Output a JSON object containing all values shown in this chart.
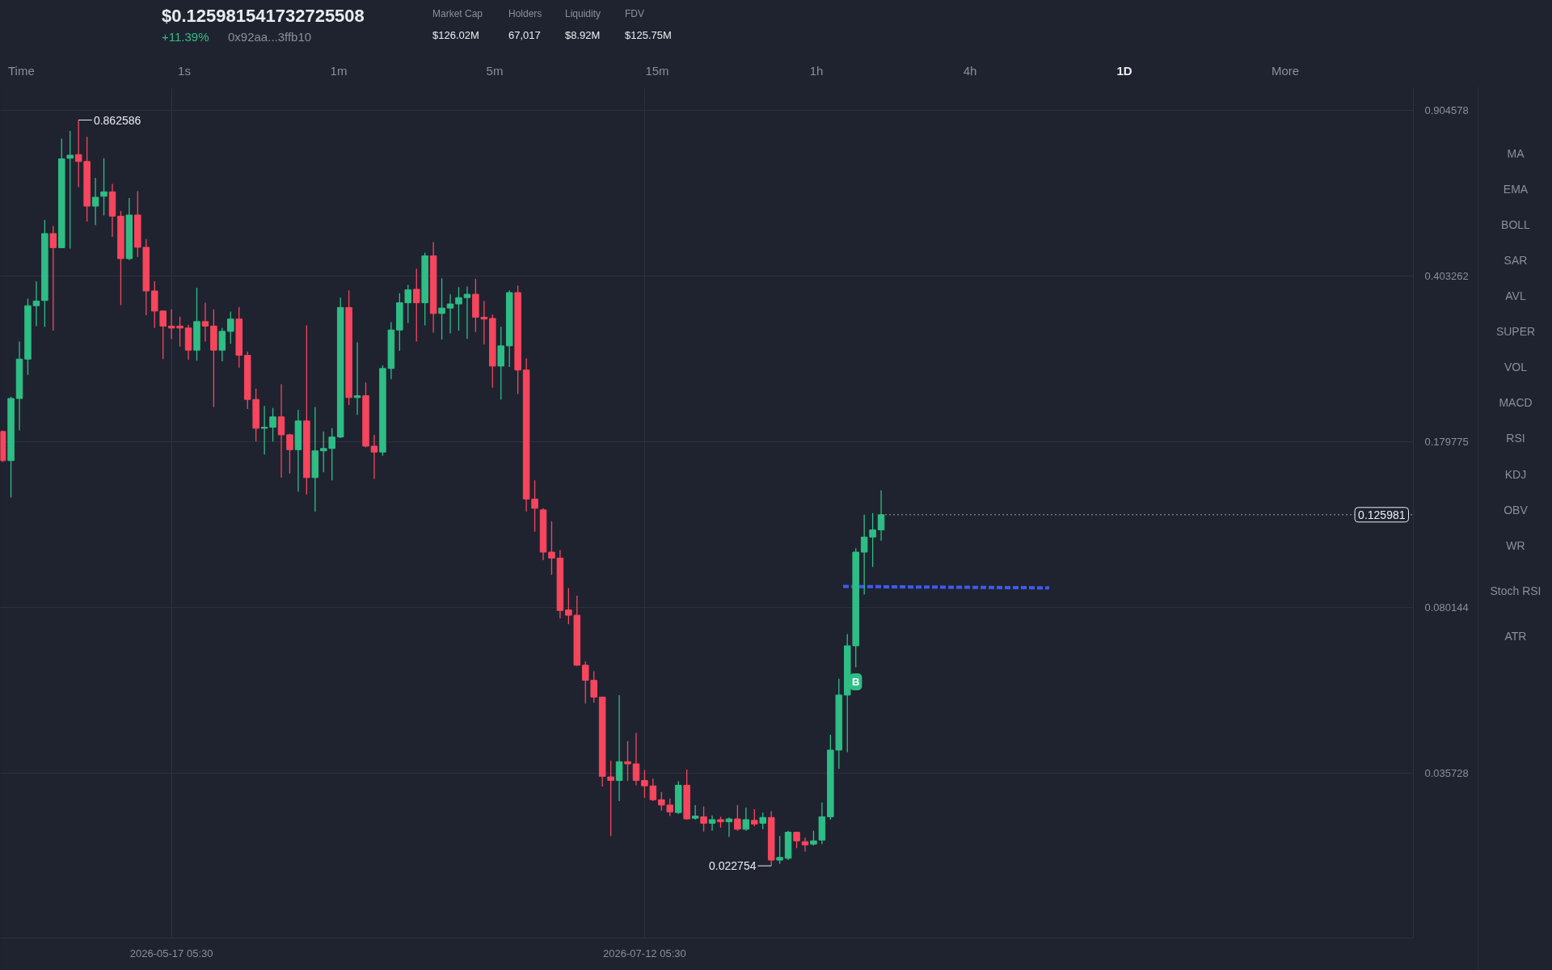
{
  "chart_data": {
    "type": "candlestick",
    "log": true,
    "grid": true,
    "xlim": [
      "2026-04-26T23:30",
      "2026-10-11T05:30"
    ],
    "xticks": [
      {
        "value": "2026-05-17T05:30",
        "label": "2026-05-17 05:30"
      },
      {
        "value": "2026-07-12T05:30",
        "label": "2026-07-12 05:30"
      }
    ],
    "ylim": [
      0.016,
      1.01
    ],
    "yticks": [
      0.035728,
      0.080144,
      0.179775,
      0.403262,
      0.904578
    ],
    "x": [
      "2026-04-27T05:30",
      "2026-04-28T05:30",
      "2026-04-29T05:30",
      "2026-04-30T05:30",
      "2026-05-01T05:30",
      "2026-05-02T05:30",
      "2026-05-03T05:30",
      "2026-05-04T05:30",
      "2026-05-05T05:30",
      "2026-05-06T05:30",
      "2026-05-07T05:30",
      "2026-05-08T05:30",
      "2026-05-09T05:30",
      "2026-05-10T05:30",
      "2026-05-11T05:30",
      "2026-05-12T05:30",
      "2026-05-13T05:30",
      "2026-05-14T05:30",
      "2026-05-15T05:30",
      "2026-05-16T05:30",
      "2026-05-17T05:30",
      "2026-05-18T05:30",
      "2026-05-19T05:30",
      "2026-05-20T05:30",
      "2026-05-21T05:30",
      "2026-05-22T05:30",
      "2026-05-23T05:30",
      "2026-05-24T05:30",
      "2026-05-25T05:30",
      "2026-05-26T05:30",
      "2026-05-27T05:30",
      "2026-05-28T05:30",
      "2026-05-29T05:30",
      "2026-05-30T05:30",
      "2026-05-31T05:30",
      "2026-06-01T05:30",
      "2026-06-02T05:30",
      "2026-06-03T05:30",
      "2026-06-04T05:30",
      "2026-06-05T05:30",
      "2026-06-06T05:30",
      "2026-06-07T05:30",
      "2026-06-08T05:30",
      "2026-06-09T05:30",
      "2026-06-10T05:30",
      "2026-06-11T05:30",
      "2026-06-12T05:30",
      "2026-06-13T05:30",
      "2026-06-14T05:30",
      "2026-06-15T05:30",
      "2026-06-16T05:30",
      "2026-06-17T05:30",
      "2026-06-18T05:30",
      "2026-06-19T05:30",
      "2026-06-20T05:30",
      "2026-06-21T05:30",
      "2026-06-22T05:30",
      "2026-06-23T05:30",
      "2026-06-24T05:30",
      "2026-06-25T05:30",
      "2026-06-26T05:30",
      "2026-06-27T05:30",
      "2026-06-28T05:30",
      "2026-06-29T05:30",
      "2026-06-30T05:30",
      "2026-07-01T05:30",
      "2026-07-02T05:30",
      "2026-07-03T05:30",
      "2026-07-04T05:30",
      "2026-07-05T05:30",
      "2026-07-06T05:30",
      "2026-07-07T05:30",
      "2026-07-08T05:30",
      "2026-07-09T05:30",
      "2026-07-10T05:30",
      "2026-07-11T05:30",
      "2026-07-12T05:30",
      "2026-07-13T05:30",
      "2026-07-14T05:30",
      "2026-07-15T05:30",
      "2026-07-16T05:30",
      "2026-07-17T05:30",
      "2026-07-18T05:30",
      "2026-07-19T05:30",
      "2026-07-20T05:30",
      "2026-07-21T05:30",
      "2026-07-22T05:30",
      "2026-07-23T05:30",
      "2026-07-24T05:30",
      "2026-07-25T05:30",
      "2026-07-26T05:30",
      "2026-07-27T05:30",
      "2026-07-28T05:30",
      "2026-07-29T05:30",
      "2026-07-30T05:30",
      "2026-07-31T05:30",
      "2026-08-01T05:30",
      "2026-08-02T05:30",
      "2026-08-03T05:30",
      "2026-08-04T05:30",
      "2026-08-05T05:30",
      "2026-08-06T05:30",
      "2026-08-07T05:30",
      "2026-08-08T05:30",
      "2026-08-09T05:30"
    ],
    "ohlc": [
      [
        0.189,
        0.19,
        0.163,
        0.164
      ],
      [
        0.164,
        0.224,
        0.137,
        0.222
      ],
      [
        0.222,
        0.293,
        0.19,
        0.269
      ],
      [
        0.269,
        0.361,
        0.249,
        0.349
      ],
      [
        0.349,
        0.393,
        0.316,
        0.357
      ],
      [
        0.358,
        0.53,
        0.315,
        0.496
      ],
      [
        0.496,
        0.515,
        0.309,
        0.463
      ],
      [
        0.463,
        0.788,
        0.462,
        0.714
      ],
      [
        0.716,
        0.818,
        0.461,
        0.727
      ],
      [
        0.729,
        0.862586,
        0.622,
        0.705
      ],
      [
        0.705,
        0.795,
        0.526,
        0.567
      ],
      [
        0.567,
        0.651,
        0.517,
        0.592
      ],
      [
        0.595,
        0.716,
        0.542,
        0.608
      ],
      [
        0.608,
        0.632,
        0.488,
        0.54
      ],
      [
        0.54,
        0.554,
        0.35,
        0.439
      ],
      [
        0.439,
        0.59,
        0.436,
        0.543
      ],
      [
        0.543,
        0.61,
        0.443,
        0.464
      ],
      [
        0.464,
        0.483,
        0.333,
        0.375
      ],
      [
        0.375,
        0.393,
        0.313,
        0.34
      ],
      [
        0.34,
        0.341,
        0.269,
        0.316
      ],
      [
        0.316,
        0.343,
        0.297,
        0.313
      ],
      [
        0.316,
        0.331,
        0.286,
        0.313
      ],
      [
        0.313,
        0.318,
        0.268,
        0.281
      ],
      [
        0.281,
        0.381,
        0.267,
        0.323
      ],
      [
        0.323,
        0.354,
        0.293,
        0.316
      ],
      [
        0.316,
        0.343,
        0.213,
        0.281
      ],
      [
        0.281,
        0.313,
        0.266,
        0.308
      ],
      [
        0.308,
        0.339,
        0.29,
        0.327
      ],
      [
        0.327,
        0.347,
        0.258,
        0.274
      ],
      [
        0.274,
        0.279,
        0.211,
        0.221
      ],
      [
        0.221,
        0.233,
        0.18,
        0.192
      ],
      [
        0.192,
        0.214,
        0.169,
        0.193
      ],
      [
        0.193,
        0.212,
        0.18,
        0.203
      ],
      [
        0.203,
        0.238,
        0.151,
        0.186
      ],
      [
        0.186,
        0.187,
        0.154,
        0.173
      ],
      [
        0.173,
        0.21,
        0.141,
        0.199
      ],
      [
        0.199,
        0.317,
        0.139,
        0.151
      ],
      [
        0.151,
        0.213,
        0.128,
        0.172
      ],
      [
        0.172,
        0.189,
        0.155,
        0.174
      ],
      [
        0.174,
        0.192,
        0.149,
        0.184
      ],
      [
        0.184,
        0.363,
        0.183,
        0.346
      ],
      [
        0.346,
        0.376,
        0.215,
        0.223
      ],
      [
        0.223,
        0.292,
        0.205,
        0.225
      ],
      [
        0.225,
        0.24,
        0.175,
        0.176
      ],
      [
        0.176,
        0.186,
        0.15,
        0.171
      ],
      [
        0.171,
        0.261,
        0.168,
        0.257
      ],
      [
        0.257,
        0.322,
        0.244,
        0.31
      ],
      [
        0.31,
        0.371,
        0.28,
        0.354
      ],
      [
        0.354,
        0.386,
        0.321,
        0.377
      ],
      [
        0.378,
        0.418,
        0.293,
        0.354
      ],
      [
        0.354,
        0.452,
        0.317,
        0.445
      ],
      [
        0.445,
        0.476,
        0.306,
        0.336
      ],
      [
        0.336,
        0.399,
        0.296,
        0.345
      ],
      [
        0.345,
        0.369,
        0.305,
        0.352
      ],
      [
        0.352,
        0.382,
        0.309,
        0.363
      ],
      [
        0.363,
        0.383,
        0.297,
        0.369
      ],
      [
        0.369,
        0.398,
        0.307,
        0.33
      ],
      [
        0.33,
        0.357,
        0.289,
        0.327
      ],
      [
        0.328,
        0.334,
        0.234,
        0.26
      ],
      [
        0.26,
        0.315,
        0.221,
        0.287
      ],
      [
        0.287,
        0.376,
        0.259,
        0.372
      ],
      [
        0.372,
        0.385,
        0.227,
        0.255
      ],
      [
        0.255,
        0.27,
        0.128,
        0.136
      ],
      [
        0.136,
        0.149,
        0.116,
        0.13
      ],
      [
        0.129,
        0.13,
        0.101,
        0.105
      ],
      [
        0.105,
        0.122,
        0.094,
        0.102
      ],
      [
        0.102,
        0.106,
        0.076,
        0.079
      ],
      [
        0.0792,
        0.0881,
        0.0739,
        0.0772
      ],
      [
        0.0772,
        0.0849,
        0.0603,
        0.0605
      ],
      [
        0.0605,
        0.0616,
        0.0502,
        0.0562
      ],
      [
        0.0562,
        0.0587,
        0.0504,
        0.0518
      ],
      [
        0.0518,
        0.0519,
        0.0335,
        0.0352
      ],
      [
        0.0351,
        0.038,
        0.0263,
        0.0345
      ],
      [
        0.0345,
        0.0523,
        0.0312,
        0.0378
      ],
      [
        0.0378,
        0.0418,
        0.0344,
        0.0374
      ],
      [
        0.0374,
        0.0435,
        0.0337,
        0.0345
      ],
      [
        0.0345,
        0.0363,
        0.0317,
        0.0336
      ],
      [
        0.0336,
        0.0348,
        0.0312,
        0.0314
      ],
      [
        0.0314,
        0.0326,
        0.0298,
        0.0306
      ],
      [
        0.0306,
        0.0316,
        0.029,
        0.0296
      ],
      [
        0.0295,
        0.0344,
        0.0293,
        0.0337
      ],
      [
        0.0337,
        0.0364,
        0.0285,
        0.0286
      ],
      [
        0.0287,
        0.0306,
        0.0285,
        0.029
      ],
      [
        0.0289,
        0.0304,
        0.0269,
        0.028
      ],
      [
        0.028,
        0.0291,
        0.027,
        0.0285
      ],
      [
        0.0285,
        0.0289,
        0.0274,
        0.0282
      ],
      [
        0.0282,
        0.0288,
        0.0262,
        0.0286
      ],
      [
        0.0286,
        0.0306,
        0.027,
        0.0272
      ],
      [
        0.0272,
        0.0302,
        0.027,
        0.0285
      ],
      [
        0.0284,
        0.03,
        0.0276,
        0.0279
      ],
      [
        0.028,
        0.0295,
        0.0272,
        0.0288
      ],
      [
        0.0288,
        0.0297,
        0.022754,
        0.0234
      ],
      [
        0.0234,
        0.0263,
        0.023,
        0.0237
      ],
      [
        0.0236,
        0.027,
        0.0234,
        0.0268
      ],
      [
        0.0268,
        0.0269,
        0.0248,
        0.0257
      ],
      [
        0.0256,
        0.0261,
        0.0244,
        0.0252
      ],
      [
        0.0253,
        0.027,
        0.0251,
        0.0257
      ],
      [
        0.0258,
        0.031,
        0.0253,
        0.0289
      ],
      [
        0.0289,
        0.0431,
        0.0285,
        0.04
      ],
      [
        0.04,
        0.0566,
        0.0365,
        0.0523
      ],
      [
        0.0523,
        0.0704,
        0.0396,
        0.0665
      ],
      [
        0.0665,
        0.107,
        0.0599,
        0.105
      ],
      [
        0.105,
        0.126,
        0.0854,
        0.113
      ],
      [
        0.113,
        0.127,
        0.0977,
        0.117
      ],
      [
        0.117,
        0.142,
        0.111,
        0.125981
      ]
    ],
    "colors": [
      "#f6465d",
      "#2ebd85",
      "#2ebd85",
      "#2ebd85",
      "#2ebd85",
      "#2ebd85",
      "#f6465d",
      "#2ebd85",
      "#2ebd85",
      "#f6465d",
      "#f6465d",
      "#2ebd85",
      "#2ebd85",
      "#f6465d",
      "#f6465d",
      "#2ebd85",
      "#f6465d",
      "#f6465d",
      "#f6465d",
      "#f6465d",
      "#f6465d",
      "#f6465d",
      "#f6465d",
      "#2ebd85",
      "#f6465d",
      "#f6465d",
      "#2ebd85",
      "#2ebd85",
      "#f6465d",
      "#f6465d",
      "#f6465d",
      "#2ebd85",
      "#2ebd85",
      "#f6465d",
      "#f6465d",
      "#2ebd85",
      "#f6465d",
      "#2ebd85",
      "#2ebd85",
      "#2ebd85",
      "#2ebd85",
      "#f6465d",
      "#2ebd85",
      "#f6465d",
      "#f6465d",
      "#2ebd85",
      "#2ebd85",
      "#2ebd85",
      "#2ebd85",
      "#f6465d",
      "#2ebd85",
      "#f6465d",
      "#2ebd85",
      "#2ebd85",
      "#2ebd85",
      "#2ebd85",
      "#f6465d",
      "#f6465d",
      "#f6465d",
      "#2ebd85",
      "#2ebd85",
      "#f6465d",
      "#f6465d",
      "#f6465d",
      "#f6465d",
      "#f6465d",
      "#f6465d",
      "#f6465d",
      "#f6465d",
      "#f6465d",
      "#f6465d",
      "#f6465d",
      "#f6465d",
      "#2ebd85",
      "#f6465d",
      "#f6465d",
      "#f6465d",
      "#f6465d",
      "#f6465d",
      "#f6465d",
      "#2ebd85",
      "#f6465d",
      "#2ebd85",
      "#f6465d",
      "#2ebd85",
      "#f6465d",
      "#2ebd85",
      "#f6465d",
      "#2ebd85",
      "#f6465d",
      "#2ebd85",
      "#f6465d",
      "#2ebd85",
      "#2ebd85",
      "#f6465d",
      "#f6465d",
      "#2ebd85",
      "#2ebd85",
      "#2ebd85",
      "#2ebd85",
      "#2ebd85",
      "#2ebd85",
      "#2ebd85",
      "#2ebd85",
      "#2ebd85"
    ],
    "series": [
      {
        "type": "line",
        "x": [
          "2026-08-04T17:30",
          "2026-08-29T03:00"
        ],
        "values": [
          0.0888,
          0.0882
        ],
        "color": "#3d5bf0",
        "line_style": "dashed"
      }
    ],
    "ref_lines": [
      {
        "axis": "y",
        "value": 0.125981,
        "label": "0.125981",
        "color": "#9aa0aa",
        "line_style": "dotted"
      }
    ],
    "annotations": [
      {
        "text": "0.862586",
        "x": "2026-05-06T05:30",
        "y": 0.862586
      },
      {
        "text": "0.022754",
        "x": "2026-07-27T05:30",
        "y": 0.022754
      },
      {
        "text": "B",
        "x": "2026-08-06T05:30",
        "y": 0.0558
      },
      "$0.125981541732725508",
      "+11.39%",
      "0x92aa...3ffb10",
      "Market Cap",
      "$126.02M",
      "Holders",
      "67,017",
      "Liquidity",
      "$8.92M",
      "FDV",
      "$125.75M",
      "Time",
      "1s",
      "1m",
      "5m",
      "15m",
      "1h",
      "4h",
      "1D",
      "More",
      "MA",
      "EMA",
      "BOLL",
      "SAR",
      "AVL",
      "SUPER",
      "VOL",
      "MACD",
      "RSI",
      "KDJ",
      "OBV",
      "WR",
      "Stoch RSI",
      "ATR"
    ]
  }
}
